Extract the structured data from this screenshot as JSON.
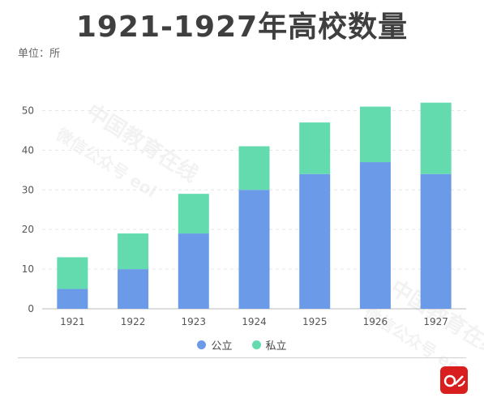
{
  "title": "1921-1927年高校数量",
  "unit_label": "单位：所",
  "watermark": {
    "line1": "中国教育在线",
    "line2": "微信公众号 eol"
  },
  "colors": {
    "public": "#6b9ae8",
    "private": "#63dbaf",
    "logo": "#d81e1e"
  },
  "chart_data": {
    "type": "bar",
    "stacked": true,
    "categories": [
      "1921",
      "1922",
      "1923",
      "1924",
      "1925",
      "1926",
      "1927"
    ],
    "series": [
      {
        "name": "公立",
        "values": [
          5,
          10,
          19,
          30,
          34,
          37,
          34
        ],
        "color": "#6b9ae8"
      },
      {
        "name": "私立",
        "values": [
          8,
          9,
          10,
          11,
          13,
          14,
          18
        ],
        "color": "#63dbaf"
      }
    ],
    "yticks": [
      0,
      10,
      20,
      30,
      40,
      50
    ],
    "ylim": [
      0,
      55
    ],
    "grid": true,
    "legend_position": "bottom-center"
  }
}
